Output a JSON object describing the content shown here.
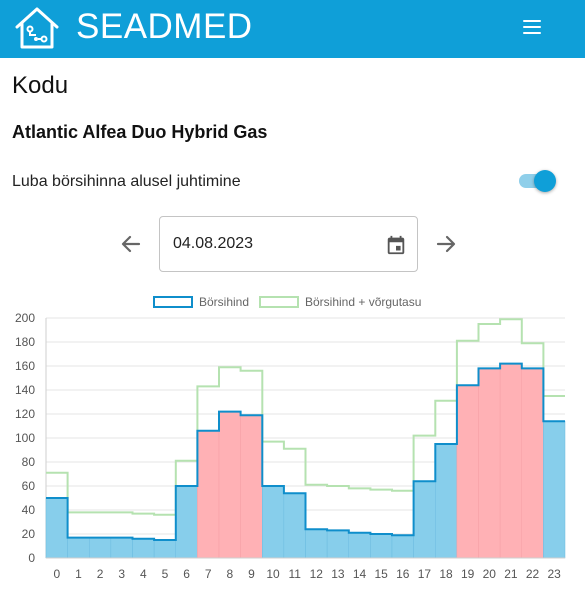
{
  "header": {
    "brand": "SEADMED",
    "logo_icon": "smart-home-icon",
    "menu_icon": "hamburger-menu-icon"
  },
  "page": {
    "title": "Kodu",
    "device_name": "Atlantic Alfea Duo Hybrid Gas",
    "toggle_label": "Luba börsihinna alusel juhtimine",
    "toggle_on": true
  },
  "date_picker": {
    "value": "04.08.2023",
    "prev_icon": "arrow-left-icon",
    "next_icon": "arrow-right-icon",
    "calendar_icon": "calendar-icon"
  },
  "colors": {
    "header": "#0f9fd8",
    "accent": "#0f9fd8",
    "bar_low": "#87ceeb",
    "bar_high": "#ffb1b5",
    "line_price": "#0f8ecb",
    "line_total": "#b5e2b0"
  },
  "chart_data": {
    "type": "bar",
    "ylim": [
      0,
      200
    ],
    "y_ticks": [
      0,
      20,
      40,
      60,
      80,
      100,
      120,
      140,
      160,
      180,
      200
    ],
    "categories": [
      "0",
      "1",
      "2",
      "3",
      "4",
      "5",
      "6",
      "7",
      "8",
      "9",
      "10",
      "11",
      "12",
      "13",
      "14",
      "15",
      "16",
      "17",
      "18",
      "19",
      "20",
      "21",
      "22",
      "23"
    ],
    "series": [
      {
        "name": "Börsihind",
        "values": [
          50,
          17,
          17,
          17,
          16,
          15,
          60,
          106,
          122,
          119,
          60,
          54,
          24,
          23,
          21,
          20,
          19,
          64,
          95,
          144,
          158,
          162,
          158,
          114
        ]
      },
      {
        "name": "Börsihind + võrgutasu",
        "values": [
          71,
          38,
          38,
          38,
          37,
          36,
          81,
          143,
          159,
          156,
          97,
          91,
          61,
          60,
          58,
          57,
          56,
          102,
          131,
          181,
          195,
          199,
          179,
          135
        ]
      }
    ],
    "highlighted_hours": [
      7,
      8,
      9,
      19,
      20,
      21,
      22
    ]
  }
}
